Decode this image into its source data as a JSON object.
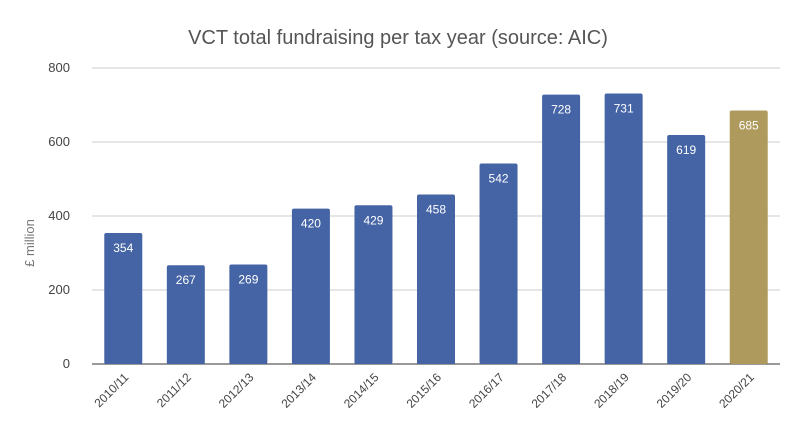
{
  "chart_data": {
    "type": "bar",
    "title": "VCT total fundraising per tax year (source: AIC)",
    "xlabel": "",
    "ylabel": "£ million",
    "ylim": [
      0,
      800
    ],
    "yticks": [
      0,
      200,
      400,
      600,
      800
    ],
    "grid": true,
    "legend": "none",
    "categories": [
      "2010/11",
      "2011/12",
      "2012/13",
      "2013/14",
      "2014/15",
      "2015/16",
      "2016/17",
      "2017/18",
      "2018/19",
      "2019/20",
      "2020/21"
    ],
    "values": [
      354,
      267,
      269,
      420,
      429,
      458,
      542,
      728,
      731,
      619,
      685
    ],
    "bar_colors": [
      "#4464a6",
      "#4464a6",
      "#4464a6",
      "#4464a6",
      "#4464a6",
      "#4464a6",
      "#4464a6",
      "#4464a6",
      "#4464a6",
      "#4464a6",
      "#ae9a5c"
    ]
  }
}
